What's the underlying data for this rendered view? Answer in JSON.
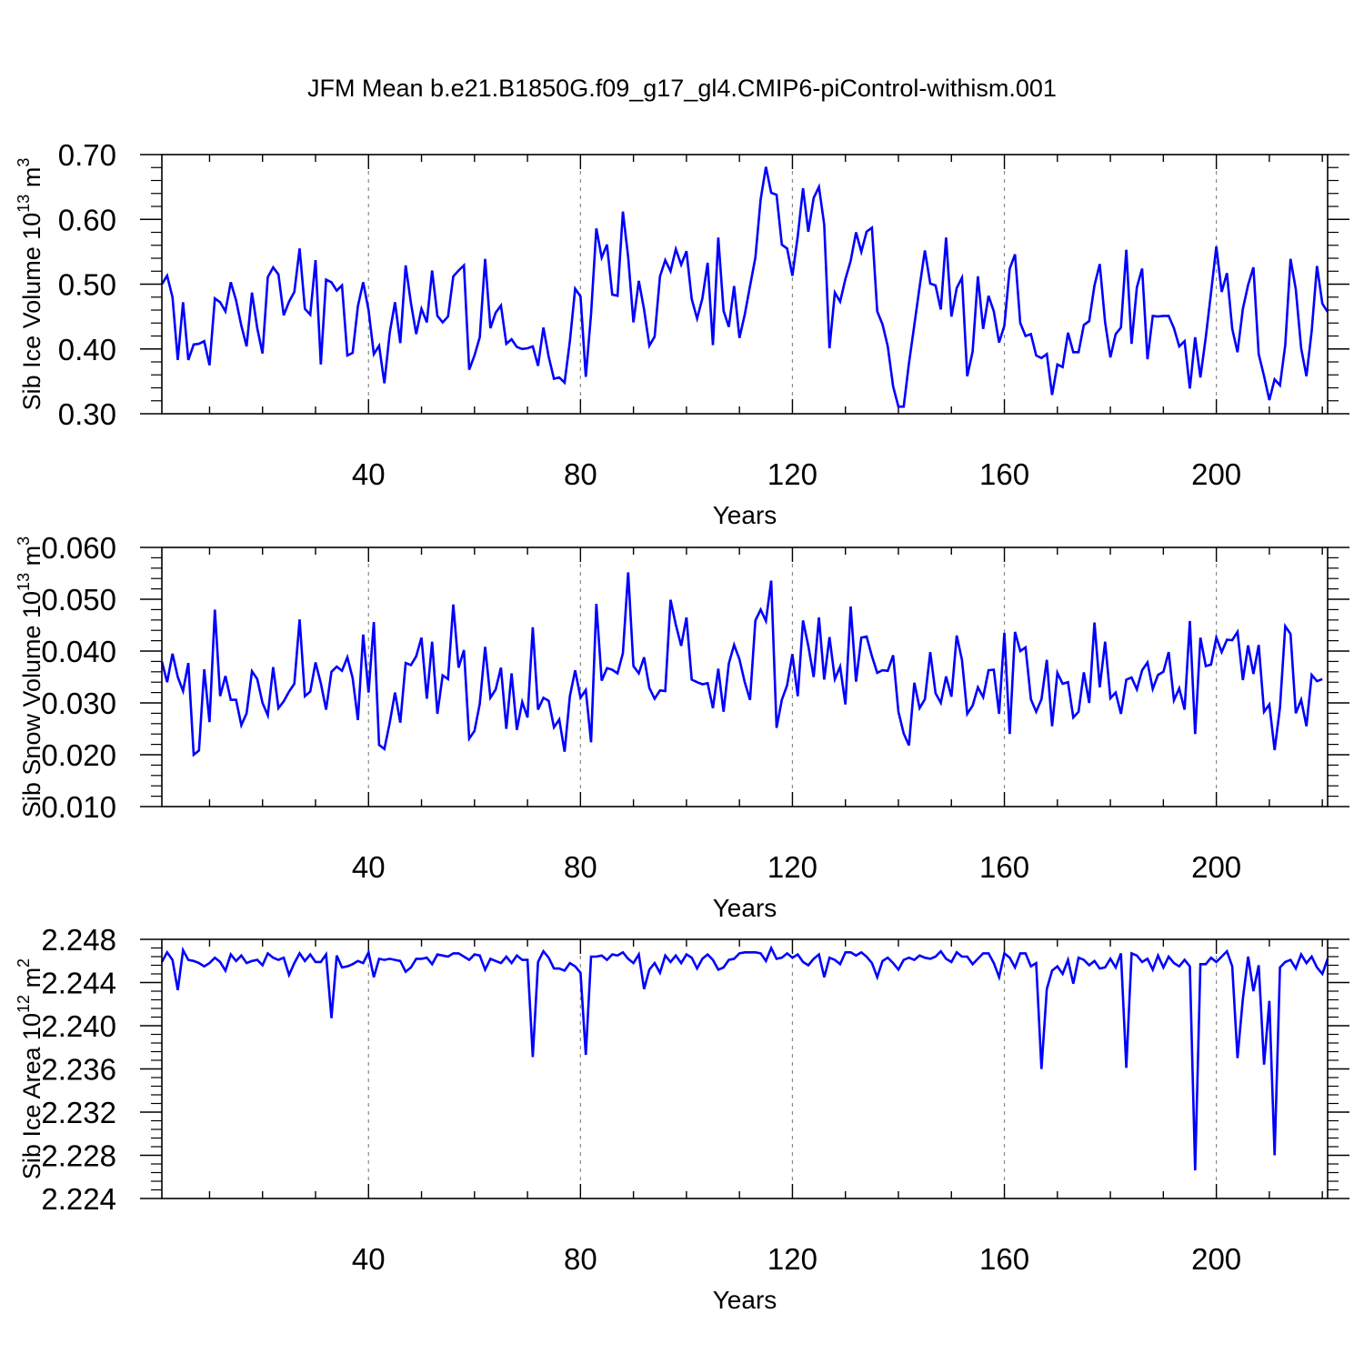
{
  "title": "JFM Mean b.e21.B1850G.f09_g17_gl4.CMIP6-piControl-withism.001",
  "line_color": "#0000ff",
  "chart_data": [
    {
      "type": "line",
      "ylabel": "Sib Ice Volume 10",
      "ylabel_exp": "13",
      "ylabel_unit": "m",
      "ylabel_unit_exp": "3",
      "xlabel": "Years",
      "xlim": [
        1,
        221
      ],
      "ylim": [
        0.3,
        0.7
      ],
      "xticks": [
        40,
        80,
        120,
        160,
        200
      ],
      "yticks": [
        0.3,
        0.4,
        0.5,
        0.6,
        0.7
      ],
      "ytick_labels": [
        "0.30",
        "0.40",
        "0.50",
        "0.60",
        "0.70"
      ],
      "grid": "vertical dashed",
      "series": [
        {
          "values": [
            0.5,
            0.513,
            0.48,
            0.383,
            0.472,
            0.383,
            0.407,
            0.408,
            0.412,
            0.375,
            0.478,
            0.472,
            0.458,
            0.503,
            0.475,
            0.436,
            0.404,
            0.487,
            0.432,
            0.393,
            0.511,
            0.526,
            0.515,
            0.452,
            0.473,
            0.488,
            0.555,
            0.462,
            0.453,
            0.537,
            0.376,
            0.507,
            0.503,
            0.49,
            0.498,
            0.39,
            0.394,
            0.466,
            0.503,
            0.46,
            0.392,
            0.405,
            0.347,
            0.425,
            0.472,
            0.409,
            0.529,
            0.471,
            0.423,
            0.462,
            0.441,
            0.521,
            0.451,
            0.441,
            0.45,
            0.512,
            0.521,
            0.529,
            0.368,
            0.39,
            0.418,
            0.539,
            0.432,
            0.456,
            0.467,
            0.408,
            0.415,
            0.403,
            0.4,
            0.401,
            0.404,
            0.374,
            0.433,
            0.388,
            0.354,
            0.356,
            0.348,
            0.412,
            0.493,
            0.481,
            0.357,
            0.454,
            0.586,
            0.541,
            0.561,
            0.484,
            0.482,
            0.612,
            0.542,
            0.441,
            0.505,
            0.461,
            0.405,
            0.419,
            0.512,
            0.537,
            0.52,
            0.554,
            0.53,
            0.551,
            0.477,
            0.447,
            0.478,
            0.533,
            0.406,
            0.572,
            0.459,
            0.434,
            0.497,
            0.417,
            0.453,
            0.497,
            0.541,
            0.631,
            0.681,
            0.641,
            0.638,
            0.561,
            0.555,
            0.513,
            0.574,
            0.648,
            0.581,
            0.633,
            0.65,
            0.592,
            0.401,
            0.487,
            0.473,
            0.508,
            0.536,
            0.58,
            0.55,
            0.581,
            0.587,
            0.458,
            0.438,
            0.404,
            0.342,
            0.311,
            0.311,
            0.378,
            0.437,
            0.496,
            0.552,
            0.501,
            0.498,
            0.461,
            0.572,
            0.45,
            0.494,
            0.51,
            0.358,
            0.396,
            0.512,
            0.431,
            0.482,
            0.458,
            0.41,
            0.436,
            0.524,
            0.546,
            0.44,
            0.42,
            0.423,
            0.39,
            0.386,
            0.392,
            0.329,
            0.376,
            0.372,
            0.425,
            0.395,
            0.395,
            0.437,
            0.443,
            0.498,
            0.531,
            0.441,
            0.387,
            0.423,
            0.433,
            0.553,
            0.408,
            0.495,
            0.524,
            0.384,
            0.451,
            0.45,
            0.451,
            0.451,
            0.432,
            0.404,
            0.412,
            0.339,
            0.418,
            0.356,
            0.418,
            0.487,
            0.558,
            0.488,
            0.517,
            0.431,
            0.395,
            0.462,
            0.499,
            0.526,
            0.392,
            0.358,
            0.321,
            0.353,
            0.344,
            0.406,
            0.539,
            0.492,
            0.401,
            0.358,
            0.428,
            0.528,
            0.47,
            0.457
          ]
        }
      ]
    },
    {
      "type": "line",
      "ylabel": "Sib Snow Volume 10",
      "ylabel_exp": "13",
      "ylabel_unit": "m",
      "ylabel_unit_exp": "3",
      "xlabel": "Years",
      "xlim": [
        1,
        221
      ],
      "ylim": [
        0.01,
        0.06
      ],
      "xticks": [
        40,
        80,
        120,
        160,
        200
      ],
      "yticks": [
        0.01,
        0.02,
        0.03,
        0.04,
        0.05,
        0.06
      ],
      "ytick_labels": [
        "0.010",
        "0.020",
        "0.030",
        "0.040",
        "0.050",
        "0.060"
      ],
      "grid": "vertical dashed",
      "series": [
        {
          "values": [
            0.038,
            0.034,
            0.0395,
            0.035,
            0.0323,
            0.0377,
            0.02,
            0.0208,
            0.0365,
            0.0263,
            0.048,
            0.0313,
            0.0352,
            0.0306,
            0.0306,
            0.0257,
            0.028,
            0.0361,
            0.0346,
            0.03,
            0.0276,
            0.0369,
            0.029,
            0.0303,
            0.0322,
            0.0337,
            0.0461,
            0.0313,
            0.0322,
            0.0378,
            0.0338,
            0.0287,
            0.036,
            0.037,
            0.0362,
            0.0388,
            0.0348,
            0.0267,
            0.0432,
            0.032,
            0.0456,
            0.0219,
            0.0211,
            0.0262,
            0.032,
            0.0262,
            0.0377,
            0.0373,
            0.039,
            0.0426,
            0.0308,
            0.0418,
            0.0279,
            0.0353,
            0.0346,
            0.049,
            0.0368,
            0.0402,
            0.0231,
            0.0246,
            0.0298,
            0.0408,
            0.031,
            0.0326,
            0.0368,
            0.025,
            0.0357,
            0.0248,
            0.0302,
            0.0272,
            0.0446,
            0.0287,
            0.031,
            0.0304,
            0.0253,
            0.0268,
            0.0206,
            0.0313,
            0.0363,
            0.031,
            0.0325,
            0.0224,
            0.0491,
            0.0343,
            0.0367,
            0.0364,
            0.0357,
            0.0396,
            0.0552,
            0.0371,
            0.0357,
            0.0388,
            0.0329,
            0.0308,
            0.0324,
            0.0323,
            0.0499,
            0.0451,
            0.041,
            0.0465,
            0.0345,
            0.034,
            0.0336,
            0.0338,
            0.029,
            0.0366,
            0.0283,
            0.0376,
            0.0412,
            0.0384,
            0.034,
            0.0306,
            0.0459,
            0.048,
            0.0458,
            0.0536,
            0.0252,
            0.0306,
            0.0334,
            0.0394,
            0.0313,
            0.0459,
            0.041,
            0.035,
            0.0465,
            0.0345,
            0.0427,
            0.0346,
            0.037,
            0.0297,
            0.0486,
            0.0341,
            0.0426,
            0.0428,
            0.039,
            0.0358,
            0.0363,
            0.0362,
            0.0392,
            0.0283,
            0.0241,
            0.0218,
            0.0339,
            0.029,
            0.0307,
            0.0398,
            0.0319,
            0.03,
            0.0351,
            0.0312,
            0.043,
            0.0383,
            0.0279,
            0.0295,
            0.033,
            0.0311,
            0.0363,
            0.0364,
            0.0279,
            0.0435,
            0.024,
            0.0437,
            0.04,
            0.0407,
            0.0307,
            0.0283,
            0.0307,
            0.0383,
            0.0255,
            0.0358,
            0.0337,
            0.034,
            0.0272,
            0.0283,
            0.0359,
            0.03,
            0.0455,
            0.033,
            0.0418,
            0.0309,
            0.032,
            0.0279,
            0.0345,
            0.0349,
            0.0326,
            0.0363,
            0.0378,
            0.0327,
            0.0354,
            0.036,
            0.0398,
            0.0305,
            0.0328,
            0.0287,
            0.0458,
            0.024,
            0.0426,
            0.0371,
            0.0374,
            0.0426,
            0.0398,
            0.0422,
            0.0421,
            0.0437,
            0.0344,
            0.0411,
            0.0356,
            0.0412,
            0.0283,
            0.0297,
            0.0209,
            0.0291,
            0.0448,
            0.0433,
            0.028,
            0.0306,
            0.0255,
            0.0354,
            0.0342,
            0.0346
          ]
        }
      ]
    },
    {
      "type": "line",
      "ylabel": "Sib Ice Area 10",
      "ylabel_exp": "12",
      "ylabel_unit": "m",
      "ylabel_unit_exp": "2",
      "xlabel": "Years",
      "xlim": [
        1,
        221
      ],
      "ylim": [
        2.224,
        2.248
      ],
      "xticks": [
        40,
        80,
        120,
        160,
        200
      ],
      "yticks": [
        2.224,
        2.228,
        2.232,
        2.236,
        2.24,
        2.244,
        2.248
      ],
      "ytick_labels": [
        "2.224",
        "2.228",
        "2.232",
        "2.236",
        "2.240",
        "2.244",
        "2.248"
      ],
      "grid": "vertical dashed",
      "series": [
        {
          "values": [
            2.2459,
            2.2468,
            2.2461,
            2.2433,
            2.247,
            2.2461,
            2.246,
            2.2458,
            2.2455,
            2.2458,
            2.2463,
            2.2459,
            2.2451,
            2.2466,
            2.246,
            2.2465,
            2.2458,
            2.246,
            2.2461,
            2.2456,
            2.2467,
            2.2463,
            2.2461,
            2.2463,
            2.2447,
            2.2458,
            2.2467,
            2.246,
            2.2466,
            2.2459,
            2.2459,
            2.2466,
            2.2407,
            2.2465,
            2.2454,
            2.2455,
            2.2457,
            2.246,
            2.2458,
            2.2468,
            2.2445,
            2.2462,
            2.2461,
            2.2462,
            2.2461,
            2.246,
            2.245,
            2.2454,
            2.2462,
            2.2462,
            2.2463,
            2.2457,
            2.2466,
            2.2465,
            2.2464,
            2.2467,
            2.2467,
            2.2464,
            2.2461,
            2.2466,
            2.2465,
            2.2452,
            2.2462,
            2.246,
            2.2458,
            2.2464,
            2.2458,
            2.2465,
            2.2461,
            2.2461,
            2.2371,
            2.2459,
            2.2469,
            2.2463,
            2.2453,
            2.2453,
            2.2451,
            2.2458,
            2.2455,
            2.2449,
            2.2373,
            2.2464,
            2.2464,
            2.2465,
            2.2461,
            2.2466,
            2.2465,
            2.2468,
            2.2462,
            2.2458,
            2.2466,
            2.2434,
            2.2452,
            2.2458,
            2.2449,
            2.2465,
            2.2459,
            2.2465,
            2.2458,
            2.2466,
            2.2463,
            2.2453,
            2.2462,
            2.2466,
            2.2461,
            2.2452,
            2.2454,
            2.2461,
            2.2462,
            2.2467,
            2.2468,
            2.2468,
            2.2468,
            2.2467,
            2.246,
            2.2472,
            2.2462,
            2.2463,
            2.2467,
            2.2463,
            2.2466,
            2.2459,
            2.2456,
            2.2462,
            2.2466,
            2.2445,
            2.2463,
            2.2461,
            2.2457,
            2.2468,
            2.2468,
            2.2465,
            2.2468,
            2.2464,
            2.2458,
            2.2445,
            2.246,
            2.2463,
            2.2458,
            2.2452,
            2.2461,
            2.2463,
            2.2461,
            2.2465,
            2.2463,
            2.2462,
            2.2464,
            2.2469,
            2.2462,
            2.2459,
            2.2468,
            2.2464,
            2.2464,
            2.2457,
            2.2462,
            2.2467,
            2.2467,
            2.2458,
            2.2445,
            2.2467,
            2.2463,
            2.2454,
            2.2467,
            2.2467,
            2.2455,
            2.2458,
            2.236,
            2.2434,
            2.2451,
            2.2455,
            2.2448,
            2.2461,
            2.2439,
            2.2463,
            2.2461,
            2.2456,
            2.246,
            2.2453,
            2.2454,
            2.2462,
            2.2454,
            2.2467,
            2.2361,
            2.2467,
            2.2465,
            2.2459,
            2.2462,
            2.2452,
            2.2465,
            2.2454,
            2.2464,
            2.2458,
            2.2455,
            2.2461,
            2.2455,
            2.2266,
            2.2457,
            2.2457,
            2.2463,
            2.2459,
            2.2464,
            2.2469,
            2.2455,
            2.237,
            2.2425,
            2.2464,
            2.2432,
            2.2456,
            2.2364,
            2.2423,
            2.228,
            2.2454,
            2.2459,
            2.2461,
            2.2453,
            2.2466,
            2.2458,
            2.2464,
            2.2454,
            2.2448,
            2.2462
          ]
        }
      ]
    }
  ]
}
